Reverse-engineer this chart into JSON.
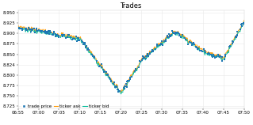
{
  "title": "Trades",
  "ylabel_values": [
    8.725,
    8.75,
    8.775,
    8.8,
    8.824,
    8.85,
    8.875,
    8.9,
    8.925,
    8.95
  ],
  "xtick_labels": [
    "06:55",
    "07:00",
    "07:05",
    "07:10",
    "07:15",
    "07:20",
    "07:25",
    "07:30",
    "07:35",
    "07:40",
    "07:45",
    "07:50"
  ],
  "trade_price_color": "#1f77b4",
  "ticker_ask_color": "#ff9900",
  "ticker_bid_color": "#00bb99",
  "background_color": "#ffffff",
  "grid_color": "#e8e8e8",
  "legend_labels": [
    "trade price",
    "ticker ask",
    "ticker bid"
  ],
  "ymin": 8.72,
  "ymax": 8.957,
  "title_fontsize": 6,
  "tick_fontsize": 4,
  "legend_fontsize": 4
}
